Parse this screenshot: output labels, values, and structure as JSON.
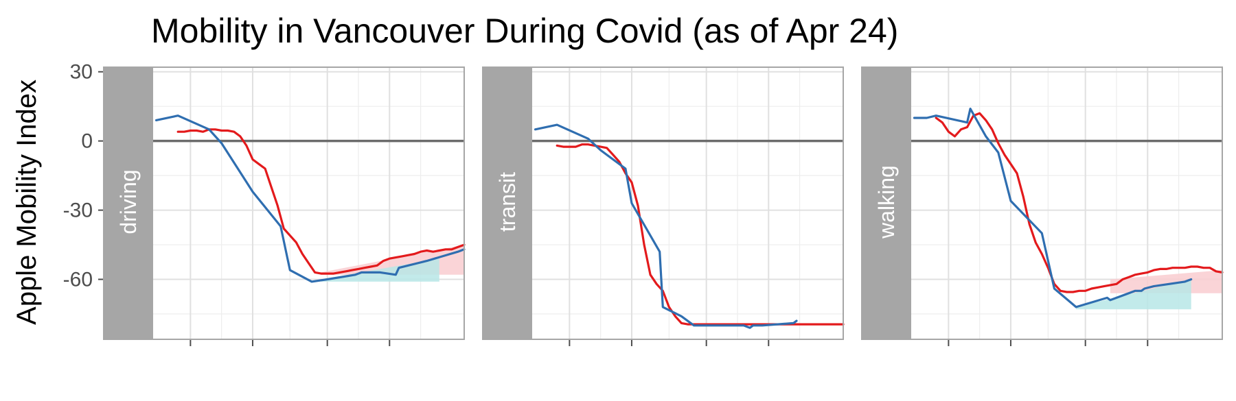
{
  "chart_data": {
    "type": "line",
    "title": "Mobility in Vancouver During Covid (as of Apr 24)",
    "ylabel": "Apple Mobility Index",
    "xlabel": "",
    "ylim": [
      -86,
      32
    ],
    "xlim": [
      -8,
      92
    ],
    "y_ticks": [
      30,
      0,
      -30,
      -60
    ],
    "y_tick_labels": [
      "30",
      "0",
      "-30",
      "-60"
    ],
    "x_major_ticks": [
      4,
      24,
      48,
      68
    ],
    "x_minor_ticks": [
      14,
      36,
      58,
      78
    ],
    "reference_line": 0,
    "grid": true,
    "legend": "none",
    "colors": {
      "red": "#e31a1c",
      "blue": "#2f6eb0",
      "band_red": "#f9cdd0",
      "band_teal": "#b7e6e6",
      "strip": "#a6a6a6",
      "zero_line": "#6b6b6b",
      "grid": "#e0e0e0",
      "panel_border": "#a6a6a6"
    },
    "panels": [
      {
        "label": "driving",
        "series": [
          {
            "color": "red",
            "x": [
              0,
              2,
              4,
              6,
              8,
              10,
              12,
              14,
              16,
              18,
              20,
              22,
              24,
              26,
              28,
              30,
              32,
              34,
              36,
              38,
              40,
              42,
              44,
              46,
              48,
              50,
              52,
              54,
              56,
              58,
              60,
              62,
              64,
              66,
              68,
              70,
              72,
              74,
              76,
              78,
              80,
              82,
              84,
              86,
              88,
              90,
              92
            ],
            "y": [
              4,
              4,
              4.5,
              4.5,
              4,
              5,
              5,
              4.5,
              4.5,
              4,
              2,
              -2,
              -8,
              -10,
              -12,
              -20,
              -28,
              -38,
              -41,
              -44,
              -49,
              -53,
              -57,
              -57.5,
              -57.5,
              -57.5,
              -57,
              -56.5,
              -56,
              -55.5,
              -55,
              -54.5,
              -54,
              -52,
              -51,
              -50.5,
              -50,
              -49.5,
              -49,
              -48,
              -47.5,
              -48,
              -47.5,
              -47,
              -47,
              -46,
              -45
            ]
          },
          {
            "color": "blue",
            "x": [
              -7,
              0,
              10,
              14,
              24,
              33,
              36,
              43,
              48,
              57,
              59,
              62,
              65,
              70,
              71,
              80,
              90,
              92
            ],
            "y": [
              9,
              11,
              5,
              -1,
              -22,
              -37,
              -56,
              -61,
              -60,
              -58,
              -57,
              -57,
              -57,
              -58,
              -55,
              -52,
              -48,
              -47
            ]
          }
        ],
        "bands": [
          {
            "color": "band_red",
            "x": [
              46,
              92
            ],
            "top": [
              -57,
              -45
            ],
            "bottom": [
              -58,
              -58
            ]
          },
          {
            "color": "band_teal",
            "x": [
              46,
              84
            ],
            "top": [
              -60,
              -51
            ],
            "bottom": [
              -61,
              -61
            ]
          }
        ]
      },
      {
        "label": "transit",
        "series": [
          {
            "color": "red",
            "x": [
              0,
              2,
              4,
              6,
              8,
              10,
              12,
              14,
              16,
              18,
              20,
              22,
              24,
              26,
              28,
              30,
              32,
              34,
              36,
              38,
              40,
              42,
              44,
              46,
              48,
              50,
              52,
              54,
              56,
              58,
              60,
              62,
              64,
              66,
              68,
              70,
              72,
              74,
              76,
              78,
              80,
              82,
              84,
              86,
              88,
              90,
              92
            ],
            "y": [
              -2,
              -2.5,
              -2.5,
              -2.5,
              -1.5,
              -1.5,
              -2,
              -2.5,
              -3,
              -6,
              -9,
              -14,
              -18,
              -28,
              -45,
              -58,
              -62,
              -65,
              -72,
              -76,
              -79,
              -79.5,
              -79.5,
              -79.5,
              -79.5,
              -79.5,
              -79.5,
              -79.5,
              -79.5,
              -79.5,
              -79.5,
              -79.5,
              -79.5,
              -79.5,
              -79.5,
              -79.5,
              -79.5,
              -79.5,
              -79.5,
              -79.5,
              -79.5,
              -79.5,
              -79.5,
              -79.5,
              -79.5,
              -79.5,
              -79.5
            ]
          },
          {
            "color": "blue",
            "x": [
              -7,
              0,
              10,
              14,
              22,
              24,
              33,
              34,
              40,
              44,
              60,
              62,
              63,
              66,
              76,
              77
            ],
            "y": [
              5,
              7,
              1,
              -4,
              -12,
              -27,
              -48,
              -72,
              -76,
              -80,
              -80,
              -81,
              -80,
              -80,
              -79,
              -78
            ]
          }
        ],
        "bands": []
      },
      {
        "label": "walking",
        "series": [
          {
            "color": "red",
            "x": [
              0,
              2,
              4,
              6,
              8,
              10,
              12,
              14,
              16,
              18,
              20,
              22,
              24,
              26,
              28,
              30,
              32,
              34,
              36,
              38,
              40,
              42,
              44,
              46,
              48,
              50,
              52,
              54,
              56,
              58,
              60,
              62,
              64,
              66,
              68,
              70,
              72,
              74,
              76,
              78,
              80,
              82,
              84,
              86,
              88,
              90,
              92
            ],
            "y": [
              10,
              8,
              4,
              2,
              5,
              6,
              11,
              12,
              9,
              5,
              -1,
              -6,
              -10,
              -14,
              -24,
              -36,
              -44,
              -49,
              -55,
              -62,
              -65,
              -65.5,
              -65.5,
              -65,
              -65,
              -64,
              -63.5,
              -63,
              -62.5,
              -62,
              -60,
              -59,
              -58,
              -57.5,
              -57,
              -56,
              -55.5,
              -55.5,
              -55,
              -55,
              -55,
              -54.5,
              -54.5,
              -55,
              -55,
              -56.5,
              -57
            ]
          },
          {
            "color": "blue",
            "x": [
              -7,
              -3,
              0,
              10,
              11,
              16,
              20,
              24,
              34,
              38,
              45,
              55,
              56,
              64,
              66,
              67,
              70,
              80,
              82
            ],
            "y": [
              10,
              10,
              11,
              8,
              14,
              2,
              -5,
              -26,
              -40,
              -64,
              -72,
              -68,
              -69,
              -65,
              -65,
              -64,
              -63,
              -61,
              -60
            ]
          }
        ],
        "bands": [
          {
            "color": "band_red",
            "x": [
              56,
              92
            ],
            "top": [
              -60,
              -56
            ],
            "bottom": [
              -66,
              -66
            ]
          },
          {
            "color": "band_teal",
            "x": [
              45,
              82
            ],
            "top": [
              -72,
              -60
            ],
            "bottom": [
              -73,
              -73
            ]
          }
        ]
      }
    ]
  }
}
